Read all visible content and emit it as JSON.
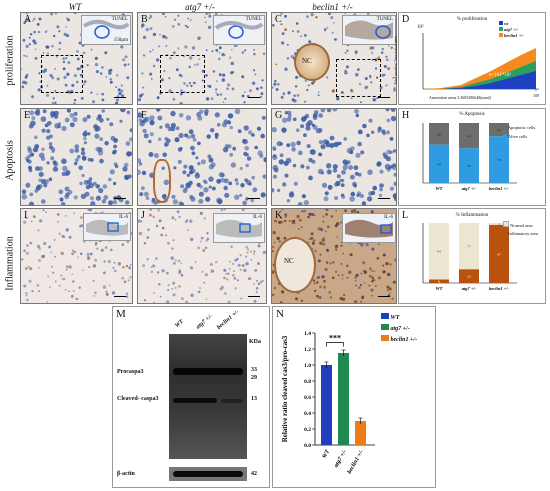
{
  "columns": {
    "wt": "WT",
    "atg7": "atg7 +/-",
    "beclin1": "beclin1 +/-"
  },
  "rows": {
    "proliferation": "proliferation",
    "apoptosis": "Apoptosis",
    "inflammation": "Inflammation"
  },
  "panels": {
    "A": "A",
    "B": "B",
    "C": "C",
    "D": "D",
    "E": "E",
    "F": "F",
    "G": "G",
    "H": "H",
    "I": "I",
    "J": "J",
    "K": "K",
    "L": "L",
    "M": "M",
    "N": "N"
  },
  "insets": {
    "tunel": "TUNEL",
    "il6": "IL-6",
    "scale": "150µm"
  },
  "nc_label": "NC",
  "colors": {
    "blue_stain": "#3c5ea6",
    "brown_stain": "#8b4a1f",
    "wt": "#1f3fbf",
    "atg7": "#1f8a50",
    "beclin1": "#f07a1a",
    "apoptotic": "#7a7a7a",
    "alive": "#2f9be0",
    "normal": "#ede6d0",
    "inflam": "#b8520e"
  },
  "chart_D": {
    "title": "% proliferation",
    "exp": "10²",
    "ylabel": "Total number/ Annotation area",
    "xlabel": "Annotation areas 3.3605496648(mm2)",
    "x_end": "100",
    "annotation": "n=161*10²",
    "legend": [
      "wt",
      "atg7 +/-",
      "beclin1 +/-"
    ]
  },
  "chart_H": {
    "title": "% Apoptosis",
    "legend": [
      "Apoptotic cells",
      "Alive cells"
    ],
    "categories": [
      "WT",
      "atg7 +/-",
      "beclin1 +/-"
    ]
  },
  "chart_L": {
    "title": "% Inflammation",
    "legend": [
      "Normal area",
      "Inflamatory area"
    ],
    "categories": [
      "WT",
      "atg7 +/-",
      "beclin1 +/-"
    ]
  },
  "chart_data": [
    {
      "type": "bar",
      "title": "% Apoptosis",
      "categories": [
        "WT",
        "atg7 +/-",
        "beclin1 +/-"
      ],
      "series": [
        {
          "name": "Apoptotic cells",
          "values": [
            36,
            42,
            22
          ]
        },
        {
          "name": "Alive cells",
          "values": [
            64,
            58,
            78
          ]
        }
      ],
      "ylim": [
        0,
        100
      ]
    },
    {
      "type": "bar",
      "title": "% Inflammation",
      "categories": [
        "WT",
        "atg7 +/-",
        "beclin1 +/-"
      ],
      "series": [
        {
          "name": "Normal area",
          "values": [
            94,
            77,
            3
          ]
        },
        {
          "name": "Inflamatory area",
          "values": [
            6,
            23,
            97
          ]
        }
      ],
      "ylim": [
        0,
        100
      ]
    },
    {
      "type": "bar",
      "ylabel": "Relative ratio cleaved cas3/pro-cas3",
      "categories": [
        "WT",
        "atg7 +/-",
        "beclin1 +/-"
      ],
      "values": [
        1.0,
        1.15,
        0.3
      ],
      "ylim": [
        0,
        1.4
      ],
      "yticks": [
        "0.0",
        "0.2",
        "0.4",
        "0.6",
        "0.8",
        "1.0",
        "1.2",
        "1.4"
      ],
      "significance": "***"
    }
  ],
  "chart_N": {
    "legend": [
      "WT",
      "atg7 +/-",
      "beclin1 +/-"
    ],
    "categories": [
      "WT",
      "atg7 +/-",
      "beclin1 +/-"
    ]
  },
  "blot": {
    "lanes": [
      "WT",
      "atg7 +/-",
      "beclin1 +/-"
    ],
    "kda": "KDa",
    "bands": [
      "Procaspa3",
      "Cleaved- caspa3",
      "β-actin"
    ],
    "markers": [
      "33",
      "29",
      "13",
      "42"
    ]
  }
}
